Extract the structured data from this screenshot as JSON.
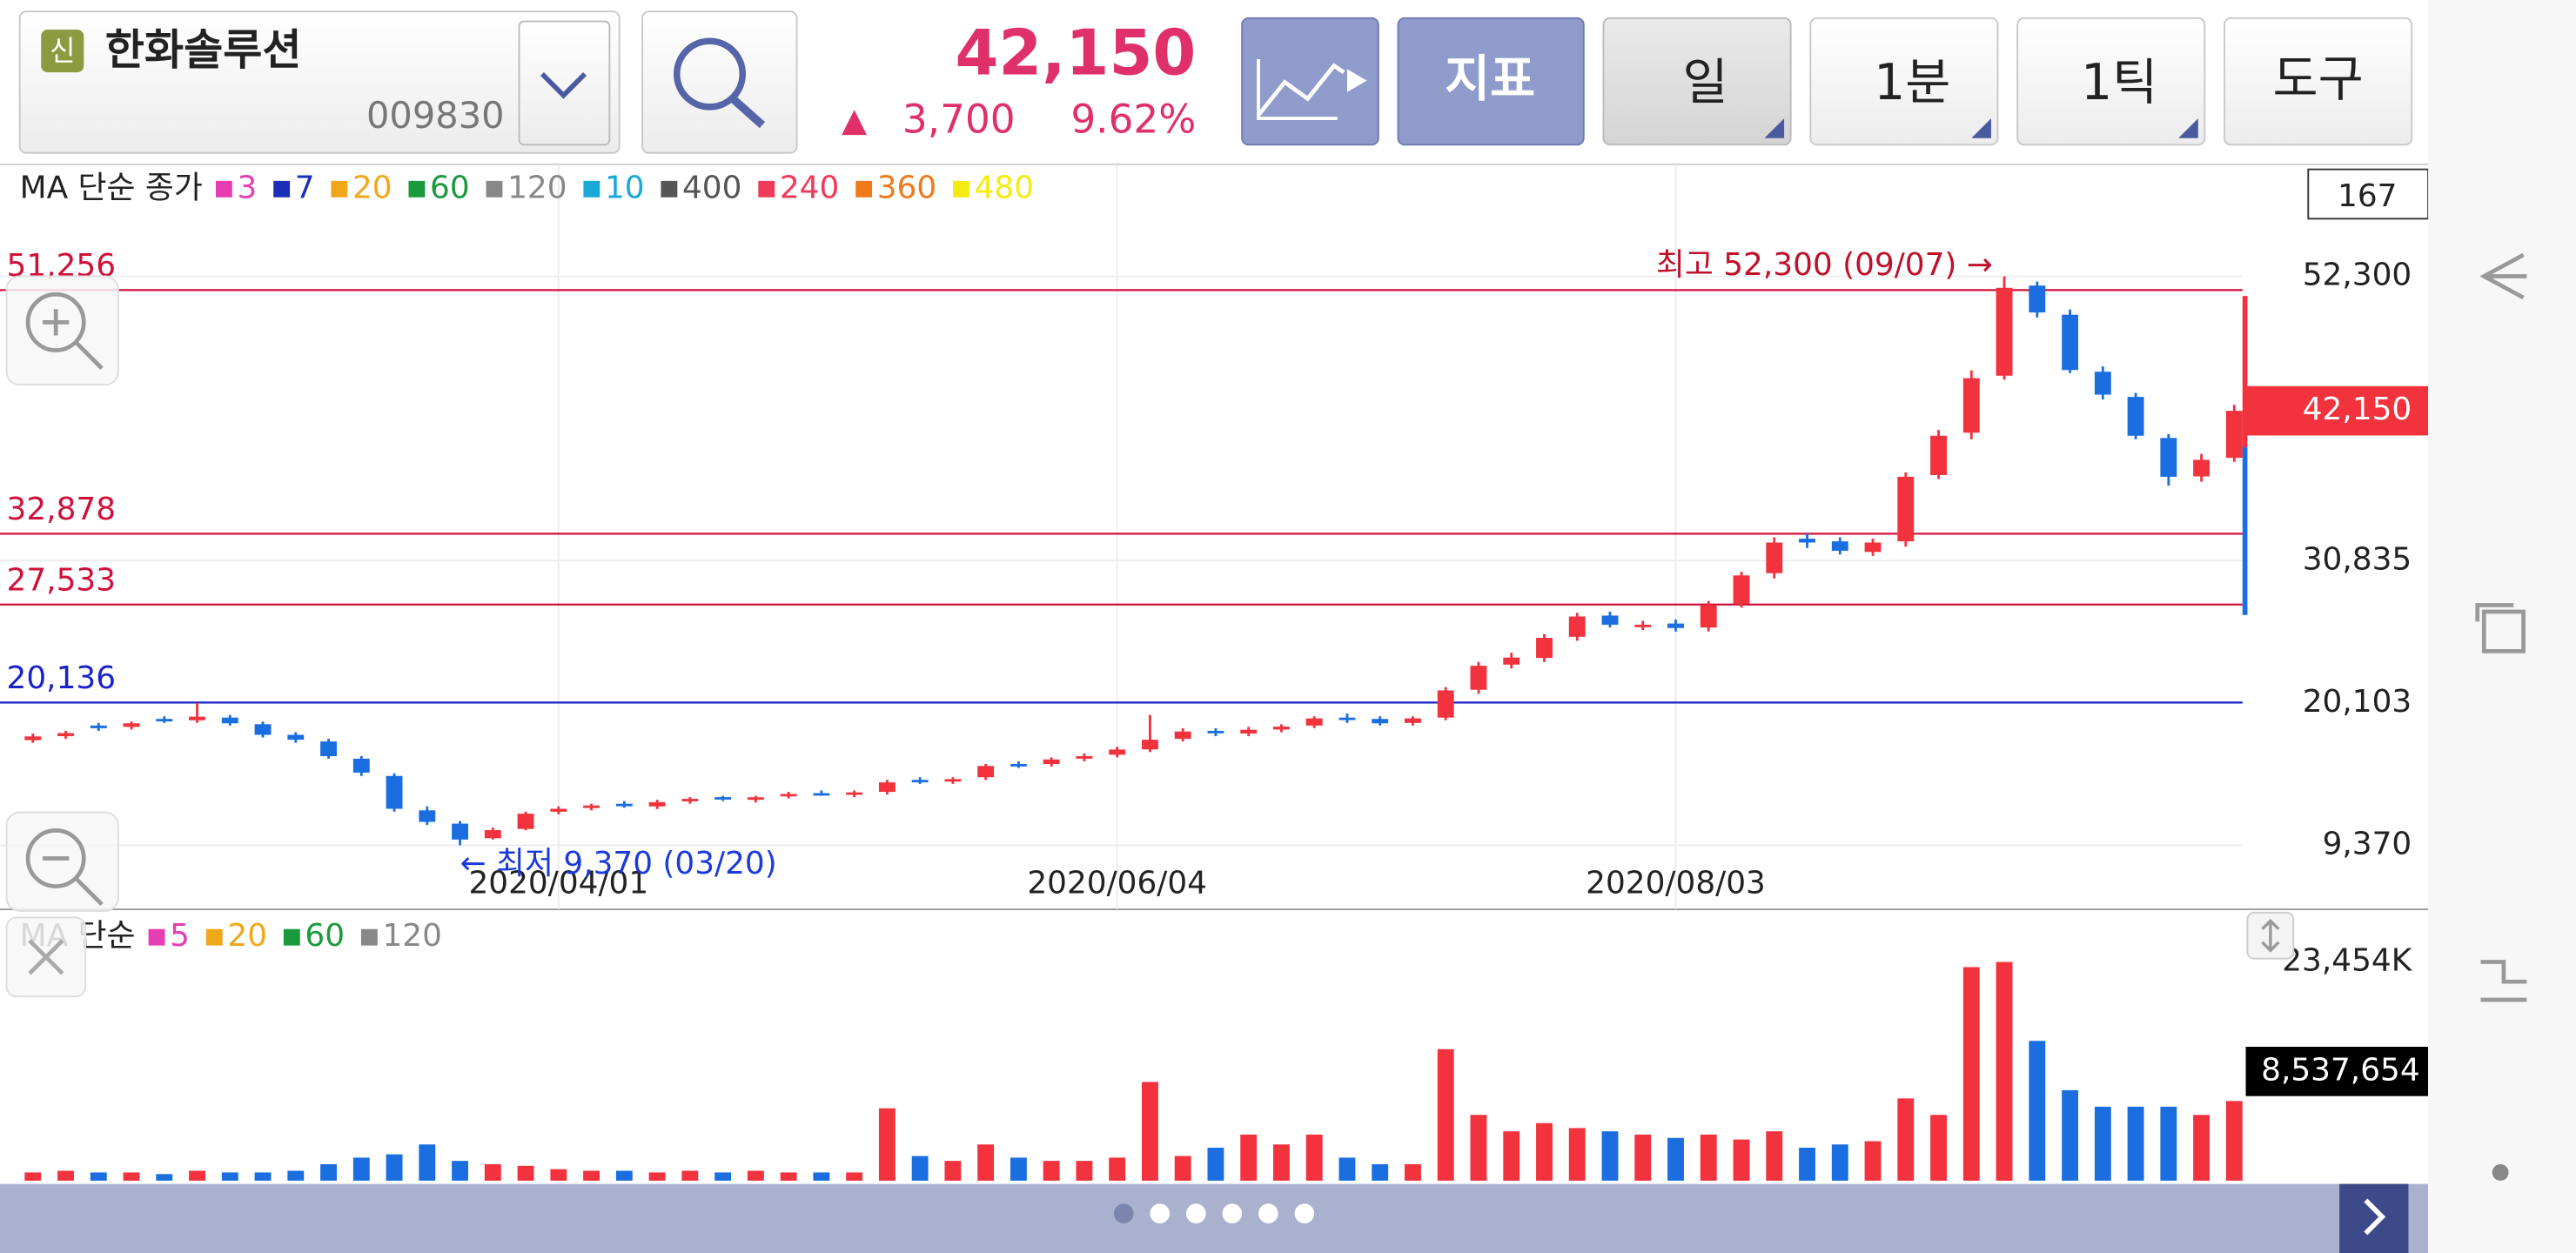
{
  "header": {
    "badge": "신",
    "name": "한화솔루션",
    "code": "009830",
    "price": "42,150",
    "arrow": "▲",
    "change": "3,700",
    "change_pct": "9.62%"
  },
  "buttons": [
    "지표",
    "일",
    "1분",
    "1틱",
    "도구"
  ],
  "info_box": 167,
  "chart_data": [
    {
      "type": "candlestick",
      "ma_legend": {
        "label": "MA 단순 종가",
        "items": [
          {
            "name": "3",
            "color": "#e63cb4"
          },
          {
            "name": "7",
            "color": "#1a2eb8"
          },
          {
            "name": "20",
            "color": "#f0a81a"
          },
          {
            "name": "60",
            "color": "#1a9a3a"
          },
          {
            "name": "120",
            "color": "#888888"
          },
          {
            "name": "10",
            "color": "#1aa8d8"
          },
          {
            "name": "400",
            "color": "#555555"
          },
          {
            "name": "240",
            "color": "#f03a5a"
          },
          {
            "name": "360",
            "color": "#f07a1a"
          },
          {
            "name": "480",
            "color": "#f4ec10"
          }
        ]
      },
      "categories": [
        null,
        null,
        null,
        null,
        null,
        null,
        null,
        null,
        null,
        null,
        null,
        null,
        null,
        null,
        null,
        null,
        "2020/04/01",
        null,
        null,
        null,
        null,
        null,
        null,
        null,
        null,
        null,
        null,
        null,
        null,
        null,
        null,
        null,
        null,
        "2020/06/04",
        null,
        null,
        null,
        null,
        null,
        null,
        null,
        null,
        null,
        null,
        null,
        null,
        null,
        null,
        null,
        null,
        "2020/08/03",
        null,
        null,
        null,
        null,
        null,
        null,
        null,
        null,
        null,
        null,
        null,
        null,
        null,
        null,
        null,
        null,
        null
      ],
      "open": [
        17300,
        17600,
        18400,
        18300,
        18900,
        18800,
        19000,
        18500,
        17700,
        17200,
        15900,
        14600,
        12000,
        11000,
        9900,
        10600,
        11900,
        12200,
        12500,
        12300,
        12700,
        13000,
        12800,
        13100,
        13300,
        13200,
        13400,
        14300,
        14200,
        14500,
        15500,
        15500,
        15900,
        16200,
        16600,
        17400,
        18000,
        17800,
        18100,
        18400,
        19000,
        18900,
        18600,
        19000,
        21100,
        23000,
        23500,
        25100,
        26700,
        25900,
        26100,
        25800,
        27600,
        29900,
        32500,
        32300,
        31500,
        32300,
        37300,
        40500,
        44800,
        51600,
        49400,
        45100,
        43200,
        40100,
        37200,
        38600
      ],
      "high": [
        17800,
        18000,
        18600,
        18700,
        19100,
        20100,
        19200,
        18700,
        17900,
        17400,
        16100,
        14800,
        12300,
        11200,
        10700,
        11900,
        12300,
        12500,
        12700,
        12800,
        13000,
        13100,
        13100,
        13400,
        13500,
        13500,
        14300,
        14500,
        14500,
        15500,
        15700,
        16000,
        16300,
        16800,
        19200,
        18200,
        18200,
        18300,
        18500,
        19100,
        19300,
        19100,
        19100,
        21300,
        23200,
        23900,
        25300,
        26900,
        27000,
        26300,
        26400,
        27800,
        30000,
        32600,
        32900,
        32600,
        32500,
        37500,
        40700,
        45200,
        52300,
        51900,
        49800,
        45500,
        43500,
        40400,
        38900,
        42600
      ],
      "low": [
        17100,
        17400,
        18000,
        18100,
        18600,
        18600,
        18400,
        17500,
        17100,
        15900,
        14600,
        11900,
        10900,
        9370,
        9800,
        10500,
        11700,
        12000,
        12200,
        12100,
        12500,
        12700,
        12600,
        12900,
        13100,
        13000,
        13200,
        14000,
        14000,
        14300,
        15200,
        15300,
        15700,
        16000,
        16400,
        17200,
        17600,
        17600,
        17900,
        18200,
        18600,
        18400,
        18400,
        18800,
        20800,
        22700,
        23200,
        24800,
        25800,
        25600,
        25500,
        25500,
        27300,
        29500,
        31800,
        31300,
        31200,
        31900,
        37000,
        40000,
        44500,
        49200,
        45000,
        43000,
        40000,
        36500,
        36800,
        38300
      ],
      "close": [
        17580,
        17830,
        18200,
        18570,
        18820,
        19070,
        18570,
        17700,
        17330,
        16090,
        14850,
        12120,
        11130,
        9800,
        10510,
        11750,
        12120,
        12370,
        12370,
        12620,
        12870,
        12870,
        12990,
        13240,
        13240,
        13360,
        14110,
        14230,
        14360,
        15350,
        15470,
        15840,
        16090,
        16590,
        17330,
        17950,
        17830,
        18080,
        18320,
        18940,
        18820,
        18570,
        18940,
        21050,
        22910,
        23530,
        25020,
        26630,
        26010,
        26010,
        25760,
        27500,
        29730,
        32210,
        32210,
        31590,
        32210,
        37170,
        40270,
        44610,
        51430,
        49570,
        45230,
        43370,
        40270,
        37170,
        38450,
        42150
      ],
      "up_color": "#f2323c",
      "down_color": "#1a6ee0",
      "ylim": [
        4534,
        60740
      ],
      "yticks": [
        {
          "value": 52300,
          "label": "52,300"
        },
        {
          "value": 30835,
          "label": "30,835"
        },
        {
          "value": 20103,
          "label": "20,103"
        },
        {
          "value": 9370,
          "label": "9,370"
        }
      ],
      "levels": [
        {
          "value": 51256,
          "label": "51,256",
          "color": "#d0103a"
        },
        {
          "value": 32878,
          "label": "32,878",
          "color": "#d0103a"
        },
        {
          "value": 27533,
          "label": "27,533",
          "color": "#d0103a"
        },
        {
          "value": 20136,
          "label": "20,136",
          "color": "#1a22c8"
        }
      ],
      "current_label": "42,150",
      "annotations": [
        "최고 52,300 (09/07) →",
        "← 최저 9,370 (03/20)"
      ]
    },
    {
      "type": "bar",
      "ma_legend": {
        "label": "MA 단순",
        "items": [
          {
            "name": "5",
            "color": "#e63cb4"
          },
          {
            "name": "20",
            "color": "#f0a81a"
          },
          {
            "name": "60",
            "color": "#1a9a3a"
          },
          {
            "name": "120",
            "color": "#888888"
          }
        ]
      },
      "values": [
        880000,
        1060000,
        880000,
        880000,
        705000,
        1060000,
        880000,
        880000,
        1060000,
        1760000,
        2470000,
        2820000,
        3880000,
        2120000,
        1760000,
        1590000,
        1230000,
        1060000,
        1060000,
        880000,
        1060000,
        880000,
        1060000,
        880000,
        880000,
        880000,
        7760000,
        2640000,
        2120000,
        3880000,
        2470000,
        2120000,
        2120000,
        2470000,
        10580000,
        2640000,
        3530000,
        4940000,
        3880000,
        4940000,
        2470000,
        1760000,
        1760000,
        14100000,
        7050000,
        5290000,
        6170000,
        5640000,
        5290000,
        4940000,
        4580000,
        4940000,
        4410000,
        5290000,
        3530000,
        3880000,
        4230000,
        8820000,
        7050000,
        22900000,
        23454000,
        14990000,
        9700000,
        7930000,
        7930000,
        7930000,
        7050000,
        8537654
      ],
      "ylim": [
        0,
        23454000
      ],
      "yticks": [
        {
          "value": 23454000,
          "label": "23,454K"
        }
      ],
      "current_label": "8,537,654"
    }
  ]
}
